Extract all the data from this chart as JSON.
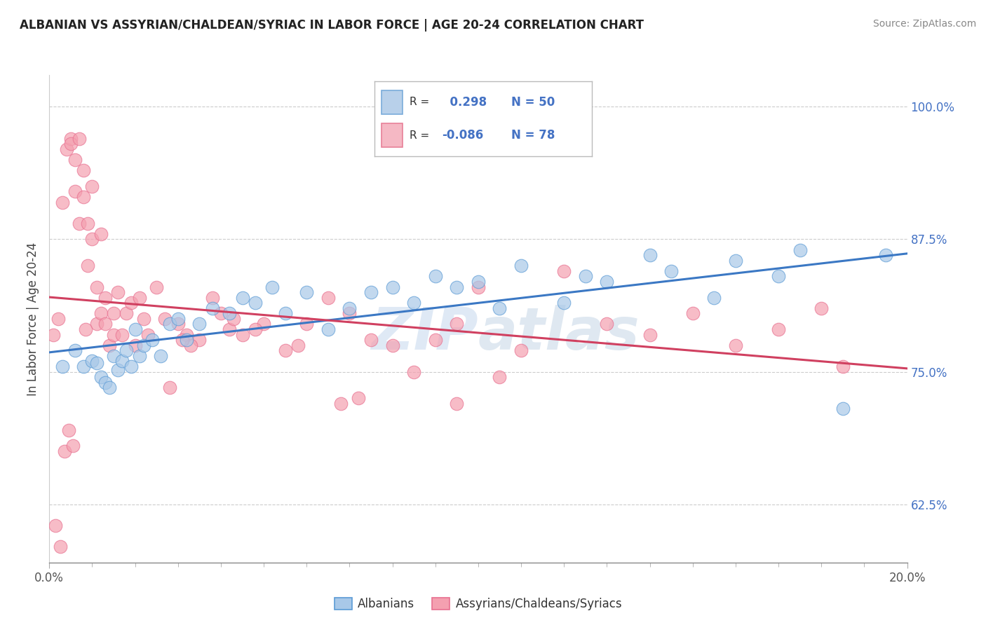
{
  "title": "ALBANIAN VS ASSYRIAN/CHALDEAN/SYRIAC IN LABOR FORCE | AGE 20-24 CORRELATION CHART",
  "source": "Source: ZipAtlas.com",
  "xmin": 0.0,
  "xmax": 20.0,
  "ymin": 57.0,
  "ymax": 103.0,
  "r_blue": 0.298,
  "n_blue": 50,
  "r_pink": -0.086,
  "n_pink": 78,
  "blue_color": "#a8c8e8",
  "pink_color": "#f4a0b0",
  "blue_edge_color": "#5b9bd5",
  "pink_edge_color": "#e87090",
  "blue_line_color": "#3b78c4",
  "pink_line_color": "#d04060",
  "legend_label_blue": "Albanians",
  "legend_label_pink": "Assyrians/Chaldeans/Syriacs",
  "yticks": [
    62.5,
    75.0,
    87.5,
    100.0
  ],
  "blue_scatter_x": [
    0.3,
    0.6,
    0.8,
    1.0,
    1.1,
    1.2,
    1.3,
    1.4,
    1.5,
    1.6,
    1.7,
    1.8,
    1.9,
    2.0,
    2.1,
    2.2,
    2.4,
    2.6,
    2.8,
    3.0,
    3.2,
    3.5,
    3.8,
    4.2,
    4.5,
    4.8,
    5.2,
    5.5,
    6.0,
    6.5,
    7.0,
    7.5,
    8.0,
    8.5,
    9.0,
    9.5,
    10.0,
    10.5,
    11.0,
    12.0,
    12.5,
    13.0,
    14.0,
    14.5,
    15.5,
    16.0,
    17.0,
    17.5,
    18.5,
    19.5
  ],
  "blue_scatter_y": [
    75.5,
    77.0,
    75.5,
    76.0,
    75.8,
    74.5,
    74.0,
    73.5,
    76.5,
    75.2,
    76.0,
    77.0,
    75.5,
    79.0,
    76.5,
    77.5,
    78.0,
    76.5,
    79.5,
    80.0,
    78.0,
    79.5,
    81.0,
    80.5,
    82.0,
    81.5,
    83.0,
    80.5,
    82.5,
    79.0,
    81.0,
    82.5,
    83.0,
    81.5,
    84.0,
    83.0,
    83.5,
    81.0,
    85.0,
    81.5,
    84.0,
    83.5,
    86.0,
    84.5,
    82.0,
    85.5,
    84.0,
    86.5,
    71.5,
    86.0
  ],
  "pink_scatter_x": [
    0.1,
    0.2,
    0.3,
    0.4,
    0.5,
    0.5,
    0.6,
    0.6,
    0.7,
    0.7,
    0.8,
    0.8,
    0.9,
    0.9,
    1.0,
    1.0,
    1.1,
    1.1,
    1.2,
    1.2,
    1.3,
    1.3,
    1.4,
    1.5,
    1.5,
    1.6,
    1.7,
    1.8,
    1.9,
    2.0,
    2.1,
    2.2,
    2.3,
    2.5,
    2.7,
    3.0,
    3.2,
    3.5,
    3.8,
    4.0,
    4.2,
    4.5,
    5.0,
    5.5,
    6.0,
    6.5,
    7.0,
    7.5,
    8.0,
    8.5,
    9.0,
    9.5,
    10.0,
    11.0,
    12.0,
    13.0,
    14.0,
    15.0,
    16.0,
    17.0,
    18.0,
    18.5,
    0.15,
    0.25,
    0.35,
    0.45,
    0.55,
    3.3,
    4.8,
    5.8,
    0.85,
    2.8,
    7.2,
    6.8,
    4.3,
    3.1,
    9.5,
    10.5
  ],
  "pink_scatter_y": [
    78.5,
    80.0,
    91.0,
    96.0,
    97.0,
    96.5,
    95.0,
    92.0,
    89.0,
    97.0,
    91.5,
    94.0,
    89.0,
    85.0,
    92.5,
    87.5,
    83.0,
    79.5,
    80.5,
    88.0,
    82.0,
    79.5,
    77.5,
    80.5,
    78.5,
    82.5,
    78.5,
    80.5,
    81.5,
    77.5,
    82.0,
    80.0,
    78.5,
    83.0,
    80.0,
    79.5,
    78.5,
    78.0,
    82.0,
    80.5,
    79.0,
    78.5,
    79.5,
    77.0,
    79.5,
    82.0,
    80.5,
    78.0,
    77.5,
    75.0,
    78.0,
    79.5,
    83.0,
    77.0,
    84.5,
    79.5,
    78.5,
    80.5,
    77.5,
    79.0,
    81.0,
    75.5,
    60.5,
    58.5,
    67.5,
    69.5,
    68.0,
    77.5,
    79.0,
    77.5,
    79.0,
    73.5,
    72.5,
    72.0,
    80.0,
    78.0,
    72.0,
    74.5
  ]
}
